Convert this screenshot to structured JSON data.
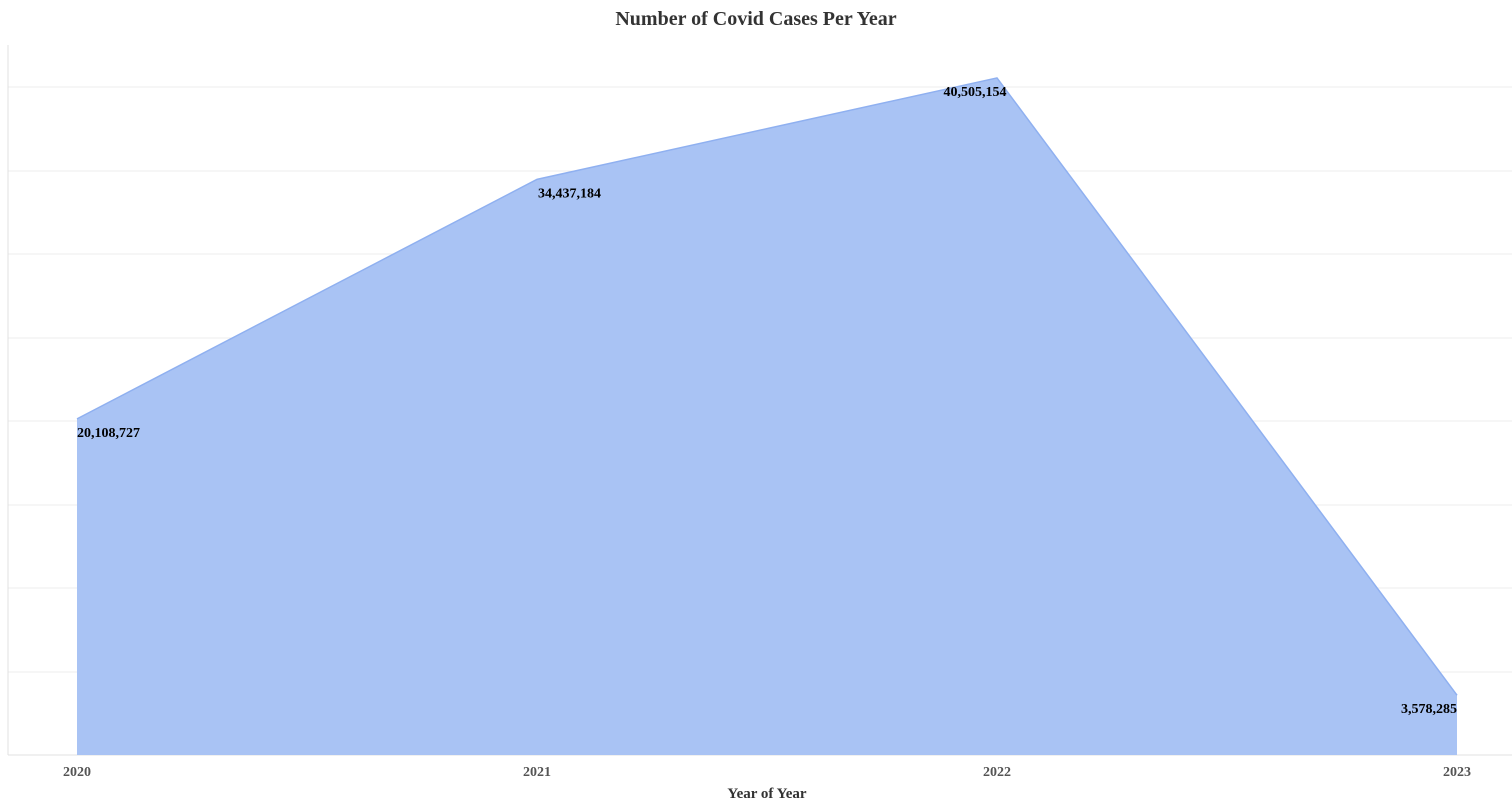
{
  "chart_data": {
    "type": "area",
    "title": "Number of Covid Cases Per Year",
    "xlabel": "Year of Year",
    "ylabel": "",
    "categories": [
      "2020",
      "2021",
      "2022",
      "2023"
    ],
    "values": [
      20108727,
      34437184,
      40505154,
      3578285
    ],
    "data_labels": [
      "20,108,727",
      "34,437,184",
      "40,505,154",
      "3,578,285"
    ],
    "ylim": [
      0,
      40500000
    ],
    "grid": true,
    "legend": "none",
    "colors": {
      "fill": "#a9c3f4",
      "stroke": "#8fb0f0",
      "grid": "#ececec",
      "axis": "#e0e0e0"
    }
  }
}
